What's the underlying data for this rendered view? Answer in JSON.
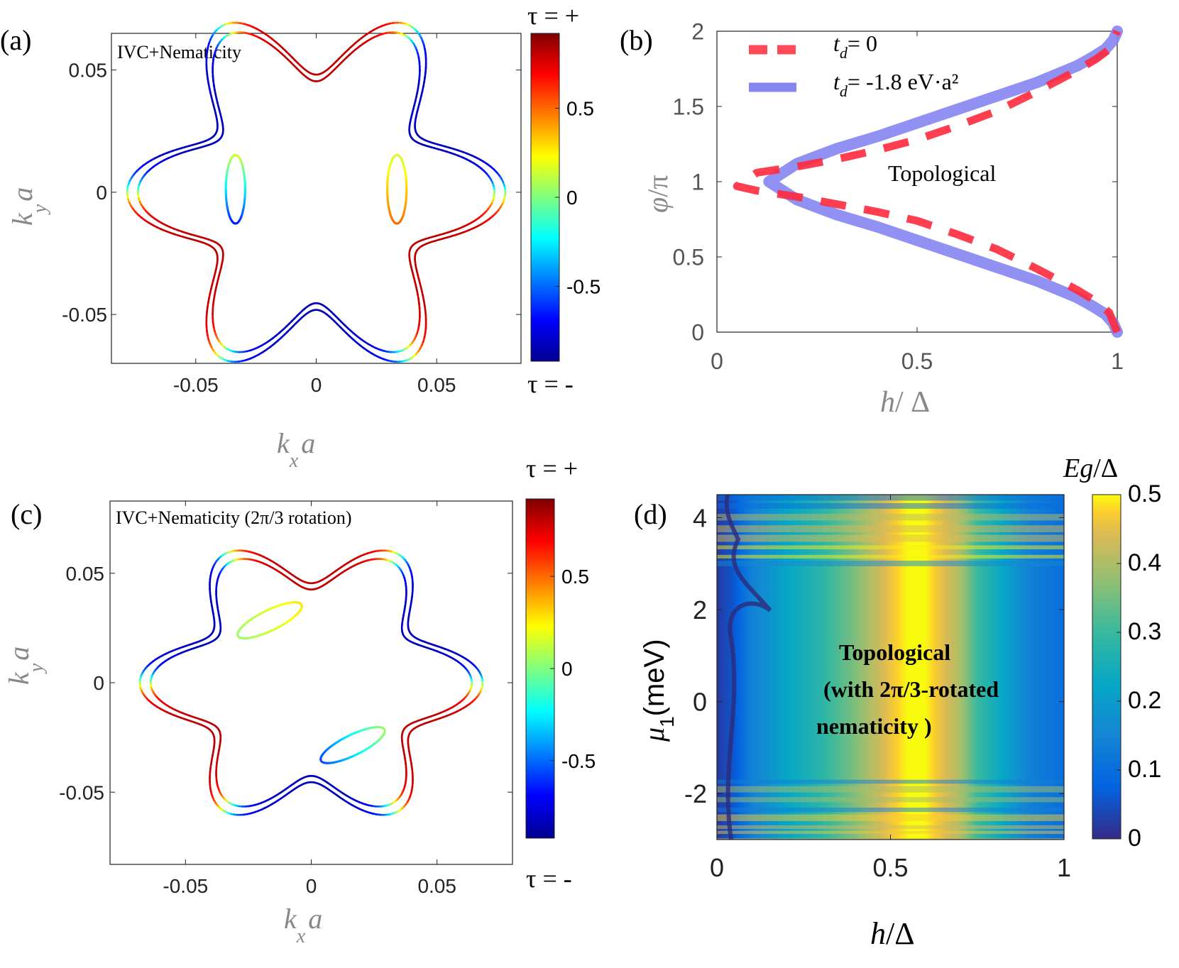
{
  "chart_data": [
    {
      "panel_label": "(a)",
      "type": "scatter",
      "title": "IVC+Nematicity",
      "xlabel": {
        "main": "k",
        "sub": "x",
        "tail": "a"
      },
      "ylabel": {
        "main": "k",
        "sub": "y",
        "tail": "a"
      },
      "xlim": [
        -0.085,
        0.085
      ],
      "ylim": [
        -0.07,
        0.065
      ],
      "xticks": [
        -0.05,
        0,
        0.05
      ],
      "yticks": [
        -0.05,
        0,
        0.05
      ],
      "xtick_labels": [
        "-0.05",
        "0",
        "0.05"
      ],
      "ytick_labels": [
        "-0.05",
        "0",
        "0.05"
      ],
      "outer_contour": {
        "r0": 0.0615,
        "modulation": 0.24,
        "petals": 6,
        "phase_deg": 0,
        "split": 0.0018
      },
      "pockets": [
        {
          "cx": -0.0335,
          "cy": 0.0012,
          "a": 0.004,
          "b": 0.014,
          "angle_deg": 0,
          "tau_top": 0.15,
          "tau_bottom": -0.7
        },
        {
          "cx": 0.0335,
          "cy": 0.0012,
          "a": 0.004,
          "b": 0.014,
          "angle_deg": 0,
          "tau_top": 0.15,
          "tau_bottom": 0.55
        }
      ],
      "colorbar": {
        "ticks": [
          0.5,
          0,
          -0.5
        ],
        "tick_labels": [
          "0.5",
          "0",
          "-0.5"
        ],
        "top_label": "τ = +",
        "bottom_label": "τ = -",
        "range": [
          -0.92,
          0.92
        ]
      }
    },
    {
      "panel_label": "(b)",
      "type": "line",
      "xlabel": {
        "main": "h",
        "tail": "/ Δ"
      },
      "ylabel": {
        "main": "φ",
        "tail": "/π"
      },
      "xlim": [
        0,
        1
      ],
      "ylim": [
        0,
        2
      ],
      "xticks": [
        0,
        0.5,
        1
      ],
      "yticks": [
        0,
        0.5,
        1,
        1.5,
        2
      ],
      "xtick_labels": [
        "0",
        "0.5",
        "1"
      ],
      "ytick_labels": [
        "0",
        "0.5",
        "1",
        "1.5",
        "2"
      ],
      "annotation": "Topological",
      "series": [
        {
          "name": "t_d = 0",
          "legend_main": "t",
          "legend_sub": "d",
          "legend_tail": "= 0",
          "color": "#ff2a3d",
          "style": "dashed",
          "x": [
            1.0,
            0.98,
            0.95,
            0.9,
            0.8,
            0.7,
            0.6,
            0.5,
            0.4,
            0.3,
            0.2,
            0.1,
            0.05,
            0.1,
            0.2,
            0.3,
            0.4,
            0.5,
            0.6,
            0.7,
            0.8,
            0.9,
            0.95,
            0.98,
            1.0
          ],
          "y": [
            0.0,
            0.13,
            0.2,
            0.28,
            0.42,
            0.55,
            0.65,
            0.74,
            0.8,
            0.85,
            0.9,
            0.94,
            0.97,
            1.06,
            1.1,
            1.15,
            1.21,
            1.28,
            1.37,
            1.47,
            1.6,
            1.74,
            1.82,
            1.88,
            2.0
          ]
        },
        {
          "name": "t_d = -1.8 eV·a²",
          "legend_main": "t",
          "legend_sub": "d",
          "legend_tail": "= -1.8 eV·a²",
          "color": "#8585f2",
          "style": "solid",
          "x": [
            1.0,
            0.99,
            0.97,
            0.94,
            0.9,
            0.8,
            0.7,
            0.6,
            0.5,
            0.4,
            0.3,
            0.2,
            0.13,
            0.13,
            0.2,
            0.3,
            0.4,
            0.5,
            0.6,
            0.7,
            0.8,
            0.9,
            0.94,
            0.97,
            0.99,
            1.0
          ],
          "y": [
            0.0,
            0.06,
            0.12,
            0.17,
            0.23,
            0.34,
            0.43,
            0.52,
            0.61,
            0.7,
            0.78,
            0.88,
            1.0,
            1.0,
            1.12,
            1.22,
            1.3,
            1.39,
            1.48,
            1.57,
            1.66,
            1.77,
            1.83,
            1.88,
            1.94,
            2.0
          ]
        }
      ]
    },
    {
      "panel_label": "(c)",
      "type": "scatter",
      "title": "IVC+Nematicity (2π/3 rotation)",
      "xlabel": {
        "main": "k",
        "sub": "x",
        "tail": "a"
      },
      "ylabel": {
        "main": "k",
        "sub": "y",
        "tail": "a"
      },
      "xlim": [
        -0.08,
        0.08
      ],
      "ylim": [
        -0.083,
        0.083
      ],
      "xticks": [
        -0.05,
        0,
        0.05
      ],
      "yticks": [
        -0.05,
        0,
        0.05
      ],
      "xtick_labels": [
        "-0.05",
        "0",
        "0.05"
      ],
      "ytick_labels": [
        "-0.05",
        "0",
        "0.05"
      ],
      "outer_contour": {
        "r0": 0.055,
        "modulation": 0.2,
        "petals": 6,
        "phase_deg": 0,
        "split": 0.0018
      },
      "pockets": [
        {
          "cx": -0.0165,
          "cy": 0.0285,
          "a": 0.0045,
          "b": 0.0145,
          "angle_deg": -60,
          "tau_top": 0.3,
          "tau_bottom": 0.05
        },
        {
          "cx": 0.0165,
          "cy": -0.0285,
          "a": 0.0045,
          "b": 0.0145,
          "angle_deg": -60,
          "tau_top": 0.05,
          "tau_bottom": -0.6
        }
      ],
      "colorbar": {
        "ticks": [
          0.5,
          0,
          -0.5
        ],
        "tick_labels": [
          "0.5",
          "0",
          "-0.5"
        ],
        "top_label": "τ = +",
        "bottom_label": "τ = -",
        "range": [
          -0.92,
          0.92
        ]
      }
    },
    {
      "panel_label": "(d)",
      "type": "heatmap",
      "xlabel": {
        "main": "h",
        "tail": "/Δ"
      },
      "ylabel": {
        "main": "μ",
        "sub": "1",
        "tail": "(meV)"
      },
      "xlim": [
        0,
        1
      ],
      "ylim": [
        -3,
        4.5
      ],
      "xticks": [
        0,
        0.5,
        1
      ],
      "yticks": [
        -2,
        0,
        2,
        4
      ],
      "xtick_labels": [
        "0",
        "0.5",
        "1"
      ],
      "ytick_labels": [
        "-2",
        "0",
        "2",
        "4"
      ],
      "annotation_lines": [
        "Topological",
        "(with 2π/3-rotated",
        "nematicity )"
      ],
      "colorbar": {
        "title_main": "E",
        "title_sub": "g",
        "title_tail": "/Δ",
        "range": [
          0,
          0.5
        ],
        "ticks": [
          0.5,
          0.4,
          0.3,
          0.2,
          0.1,
          0
        ],
        "tick_labels": [
          "0.5",
          "0.4",
          "0.3",
          "0.2",
          "0.1",
          "0"
        ]
      },
      "gap_profile": {
        "h": [
          0.0,
          0.05,
          0.1,
          0.2,
          0.3,
          0.4,
          0.5,
          0.55,
          0.6,
          0.7,
          0.75,
          0.8,
          0.9,
          1.0
        ],
        "Eg": [
          0.02,
          0.06,
          0.14,
          0.22,
          0.28,
          0.36,
          0.46,
          0.5,
          0.5,
          0.4,
          0.3,
          0.25,
          0.14,
          0.1
        ]
      },
      "noisy_mu_bands": [
        {
          "from": 3.0,
          "to": 4.5
        },
        {
          "from": -3.0,
          "to": -1.7
        }
      ]
    }
  ]
}
